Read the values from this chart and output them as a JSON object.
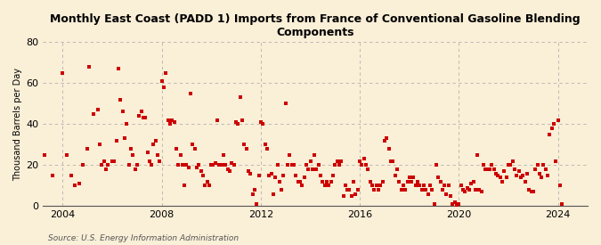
{
  "title": "Monthly East Coast (PADD 1) Imports from France of Conventional Gasoline Blending\nComponents",
  "ylabel": "Thousand Barrels per Day",
  "source": "Source: U.S. Energy Information Administration",
  "background_color": "#faefd7",
  "dot_color": "#cc0000",
  "dot_size": 5,
  "xlim": [
    2003.2,
    2025.2
  ],
  "ylim": [
    0,
    80
  ],
  "yticks": [
    0,
    20,
    40,
    60,
    80
  ],
  "xticks": [
    2004,
    2008,
    2012,
    2016,
    2020,
    2024
  ],
  "data": [
    [
      2003.25,
      25
    ],
    [
      2003.58,
      15
    ],
    [
      2004.0,
      65
    ],
    [
      2004.17,
      25
    ],
    [
      2004.33,
      15
    ],
    [
      2004.5,
      10
    ],
    [
      2004.67,
      11
    ],
    [
      2004.83,
      20
    ],
    [
      2005.0,
      28
    ],
    [
      2005.08,
      68
    ],
    [
      2005.25,
      45
    ],
    [
      2005.42,
      47
    ],
    [
      2005.5,
      30
    ],
    [
      2005.58,
      20
    ],
    [
      2005.67,
      22
    ],
    [
      2005.75,
      18
    ],
    [
      2005.83,
      20
    ],
    [
      2006.0,
      22
    ],
    [
      2006.08,
      22
    ],
    [
      2006.17,
      32
    ],
    [
      2006.25,
      67
    ],
    [
      2006.33,
      52
    ],
    [
      2006.42,
      46
    ],
    [
      2006.5,
      33
    ],
    [
      2006.58,
      40
    ],
    [
      2006.67,
      20
    ],
    [
      2006.75,
      28
    ],
    [
      2006.83,
      25
    ],
    [
      2006.92,
      18
    ],
    [
      2007.0,
      20
    ],
    [
      2007.08,
      44
    ],
    [
      2007.17,
      46
    ],
    [
      2007.25,
      43
    ],
    [
      2007.33,
      43
    ],
    [
      2007.42,
      26
    ],
    [
      2007.5,
      22
    ],
    [
      2007.58,
      20
    ],
    [
      2007.67,
      30
    ],
    [
      2007.75,
      32
    ],
    [
      2007.83,
      25
    ],
    [
      2007.92,
      22
    ],
    [
      2008.0,
      61
    ],
    [
      2008.08,
      58
    ],
    [
      2008.17,
      65
    ],
    [
      2008.25,
      42
    ],
    [
      2008.33,
      40
    ],
    [
      2008.42,
      42
    ],
    [
      2008.5,
      41
    ],
    [
      2008.58,
      28
    ],
    [
      2008.67,
      20
    ],
    [
      2008.75,
      25
    ],
    [
      2008.83,
      20
    ],
    [
      2008.92,
      10
    ],
    [
      2009.0,
      20
    ],
    [
      2009.08,
      19
    ],
    [
      2009.17,
      55
    ],
    [
      2009.25,
      30
    ],
    [
      2009.33,
      28
    ],
    [
      2009.42,
      19
    ],
    [
      2009.5,
      20
    ],
    [
      2009.58,
      17
    ],
    [
      2009.67,
      15
    ],
    [
      2009.75,
      10
    ],
    [
      2009.83,
      12
    ],
    [
      2009.92,
      10
    ],
    [
      2010.0,
      20
    ],
    [
      2010.08,
      20
    ],
    [
      2010.17,
      21
    ],
    [
      2010.25,
      42
    ],
    [
      2010.33,
      20
    ],
    [
      2010.42,
      20
    ],
    [
      2010.5,
      25
    ],
    [
      2010.58,
      20
    ],
    [
      2010.67,
      18
    ],
    [
      2010.75,
      17
    ],
    [
      2010.83,
      21
    ],
    [
      2010.92,
      20
    ],
    [
      2011.0,
      41
    ],
    [
      2011.08,
      40
    ],
    [
      2011.17,
      53
    ],
    [
      2011.25,
      42
    ],
    [
      2011.33,
      30
    ],
    [
      2011.42,
      28
    ],
    [
      2011.5,
      17
    ],
    [
      2011.58,
      16
    ],
    [
      2011.67,
      6
    ],
    [
      2011.75,
      8
    ],
    [
      2011.83,
      1
    ],
    [
      2011.92,
      15
    ],
    [
      2012.0,
      41
    ],
    [
      2012.08,
      40
    ],
    [
      2012.17,
      30
    ],
    [
      2012.25,
      28
    ],
    [
      2012.33,
      15
    ],
    [
      2012.42,
      16
    ],
    [
      2012.5,
      6
    ],
    [
      2012.58,
      14
    ],
    [
      2012.67,
      20
    ],
    [
      2012.75,
      12
    ],
    [
      2012.83,
      8
    ],
    [
      2012.92,
      15
    ],
    [
      2013.0,
      50
    ],
    [
      2013.08,
      20
    ],
    [
      2013.17,
      25
    ],
    [
      2013.25,
      20
    ],
    [
      2013.33,
      20
    ],
    [
      2013.42,
      15
    ],
    [
      2013.5,
      12
    ],
    [
      2013.58,
      12
    ],
    [
      2013.67,
      10
    ],
    [
      2013.75,
      14
    ],
    [
      2013.83,
      20
    ],
    [
      2013.92,
      18
    ],
    [
      2014.0,
      22
    ],
    [
      2014.08,
      18
    ],
    [
      2014.17,
      25
    ],
    [
      2014.25,
      18
    ],
    [
      2014.33,
      20
    ],
    [
      2014.42,
      15
    ],
    [
      2014.5,
      12
    ],
    [
      2014.58,
      10
    ],
    [
      2014.67,
      12
    ],
    [
      2014.75,
      10
    ],
    [
      2014.83,
      12
    ],
    [
      2014.92,
      15
    ],
    [
      2015.0,
      20
    ],
    [
      2015.08,
      22
    ],
    [
      2015.17,
      20
    ],
    [
      2015.25,
      22
    ],
    [
      2015.33,
      5
    ],
    [
      2015.42,
      10
    ],
    [
      2015.5,
      8
    ],
    [
      2015.58,
      8
    ],
    [
      2015.67,
      5
    ],
    [
      2015.75,
      12
    ],
    [
      2015.83,
      6
    ],
    [
      2015.92,
      8
    ],
    [
      2016.0,
      22
    ],
    [
      2016.08,
      20
    ],
    [
      2016.17,
      23
    ],
    [
      2016.25,
      20
    ],
    [
      2016.33,
      18
    ],
    [
      2016.42,
      12
    ],
    [
      2016.5,
      10
    ],
    [
      2016.58,
      8
    ],
    [
      2016.67,
      10
    ],
    [
      2016.75,
      8
    ],
    [
      2016.83,
      10
    ],
    [
      2016.92,
      12
    ],
    [
      2017.0,
      32
    ],
    [
      2017.08,
      33
    ],
    [
      2017.17,
      28
    ],
    [
      2017.25,
      22
    ],
    [
      2017.33,
      22
    ],
    [
      2017.42,
      15
    ],
    [
      2017.5,
      18
    ],
    [
      2017.58,
      12
    ],
    [
      2017.67,
      8
    ],
    [
      2017.75,
      10
    ],
    [
      2017.83,
      8
    ],
    [
      2017.92,
      12
    ],
    [
      2018.0,
      14
    ],
    [
      2018.08,
      12
    ],
    [
      2018.17,
      14
    ],
    [
      2018.25,
      10
    ],
    [
      2018.33,
      12
    ],
    [
      2018.42,
      10
    ],
    [
      2018.5,
      8
    ],
    [
      2018.58,
      10
    ],
    [
      2018.67,
      8
    ],
    [
      2018.75,
      6
    ],
    [
      2018.83,
      10
    ],
    [
      2018.92,
      8
    ],
    [
      2019.0,
      1
    ],
    [
      2019.08,
      20
    ],
    [
      2019.17,
      14
    ],
    [
      2019.25,
      12
    ],
    [
      2019.33,
      8
    ],
    [
      2019.42,
      10
    ],
    [
      2019.5,
      6
    ],
    [
      2019.58,
      10
    ],
    [
      2019.67,
      5
    ],
    [
      2019.75,
      1
    ],
    [
      2019.83,
      2
    ],
    [
      2019.92,
      0
    ],
    [
      2020.0,
      1
    ],
    [
      2020.08,
      10
    ],
    [
      2020.17,
      8
    ],
    [
      2020.25,
      7
    ],
    [
      2020.33,
      9
    ],
    [
      2020.42,
      8
    ],
    [
      2020.5,
      11
    ],
    [
      2020.58,
      12
    ],
    [
      2020.67,
      8
    ],
    [
      2020.75,
      25
    ],
    [
      2020.83,
      8
    ],
    [
      2020.92,
      7
    ],
    [
      2021.0,
      20
    ],
    [
      2021.08,
      18
    ],
    [
      2021.17,
      18
    ],
    [
      2021.25,
      18
    ],
    [
      2021.33,
      20
    ],
    [
      2021.42,
      18
    ],
    [
      2021.5,
      16
    ],
    [
      2021.58,
      15
    ],
    [
      2021.67,
      14
    ],
    [
      2021.75,
      12
    ],
    [
      2021.83,
      17
    ],
    [
      2021.92,
      14
    ],
    [
      2022.0,
      20
    ],
    [
      2022.08,
      20
    ],
    [
      2022.17,
      22
    ],
    [
      2022.25,
      18
    ],
    [
      2022.33,
      15
    ],
    [
      2022.42,
      17
    ],
    [
      2022.5,
      14
    ],
    [
      2022.58,
      15
    ],
    [
      2022.67,
      12
    ],
    [
      2022.75,
      16
    ],
    [
      2022.83,
      8
    ],
    [
      2022.92,
      7
    ],
    [
      2023.0,
      7
    ],
    [
      2023.08,
      18
    ],
    [
      2023.17,
      20
    ],
    [
      2023.25,
      16
    ],
    [
      2023.33,
      14
    ],
    [
      2023.42,
      20
    ],
    [
      2023.5,
      18
    ],
    [
      2023.58,
      15
    ],
    [
      2023.67,
      35
    ],
    [
      2023.75,
      38
    ],
    [
      2023.83,
      40
    ],
    [
      2023.92,
      22
    ],
    [
      2024.0,
      42
    ],
    [
      2024.08,
      10
    ],
    [
      2024.17,
      1
    ]
  ]
}
